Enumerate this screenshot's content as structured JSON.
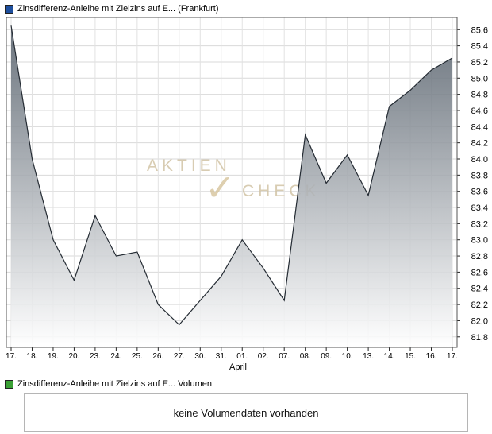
{
  "header": {
    "title": "Zinsdifferenz-Anleihe mit Zielzins auf E... (Frankfurt)",
    "legend_color": "#1e4f9e"
  },
  "chart_data": {
    "type": "area",
    "title": "Zinsdifferenz-Anleihe mit Zielzins auf E... (Frankfurt)",
    "categories": [
      "17.",
      "18.",
      "19.",
      "20.",
      "23.",
      "24.",
      "25.",
      "26.",
      "27.",
      "30.",
      "31.",
      "01.",
      "02.",
      "07.",
      "08.",
      "09.",
      "10.",
      "13.",
      "14.",
      "15.",
      "16.",
      "17."
    ],
    "values": [
      85.65,
      84.0,
      83.0,
      82.5,
      83.3,
      82.8,
      82.85,
      82.2,
      81.95,
      82.25,
      82.55,
      83.0,
      82.65,
      82.25,
      84.3,
      83.7,
      84.05,
      83.55,
      84.65,
      84.85,
      85.1,
      85.25
    ],
    "x_group_label": "April",
    "xlabel": "",
    "ylabel": "",
    "ylim": [
      81.8,
      85.6
    ],
    "ytick_step": 0.2,
    "decimal_separator": ",",
    "grid": true,
    "legend_position": "top-left",
    "line_color": "#242b33",
    "area_top_color": "#57616c",
    "area_bottom_color": "#ffffff"
  },
  "watermark": {
    "word1": "AKTIEN",
    "check": "✓",
    "word2": "CHECK"
  },
  "volume": {
    "legend_label": "Zinsdifferenz-Anleihe mit Zielzins auf E... Volumen",
    "legend_color": "#3aa035",
    "message": "keine Volumendaten vorhanden"
  }
}
